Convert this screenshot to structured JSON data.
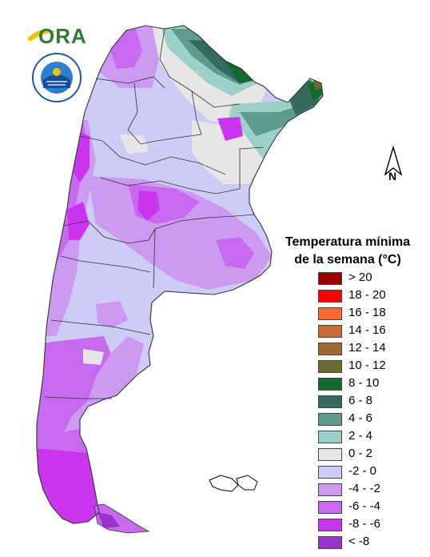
{
  "logo": {
    "text": "ORA",
    "colors": {
      "leaf": "#f2c200",
      "text": "#2f7a34"
    }
  },
  "seal": {
    "name": "Servicio Meteorológico Nacional",
    "text": "SERVICIO METEOROLÓGICO NACIONAL · ARGENTINA"
  },
  "north_arrow": {
    "label": "N"
  },
  "legend": {
    "title_line1": "Temperatura mínima",
    "title_line2": "de la semana (°C)",
    "items": [
      {
        "label": "> 20",
        "color": "#9a0000"
      },
      {
        "label": "18 - 20",
        "color": "#ff0000"
      },
      {
        "label": "16 - 18",
        "color": "#ff6a33"
      },
      {
        "label": "14 - 16",
        "color": "#cc6a38"
      },
      {
        "label": "12 - 14",
        "color": "#9a6a30"
      },
      {
        "label": "10 - 12",
        "color": "#6b6a30"
      },
      {
        "label": "8 - 10",
        "color": "#116b2e"
      },
      {
        "label": "6 - 8",
        "color": "#356b5e"
      },
      {
        "label": "4 - 6",
        "color": "#5e9a8e"
      },
      {
        "label": "2 - 4",
        "color": "#9cd0c8"
      },
      {
        "label": "0 - 2",
        "color": "#e6e6e6"
      },
      {
        "label": "-2 - 0",
        "color": "#ccccf6"
      },
      {
        "label": "-4 - -2",
        "color": "#cc9af0"
      },
      {
        "label": "-6 - -4",
        "color": "#c76af0"
      },
      {
        "label": "-8 - -6",
        "color": "#cc35f0"
      },
      {
        "label": "< -8",
        "color": "#9a33cc"
      }
    ]
  }
}
